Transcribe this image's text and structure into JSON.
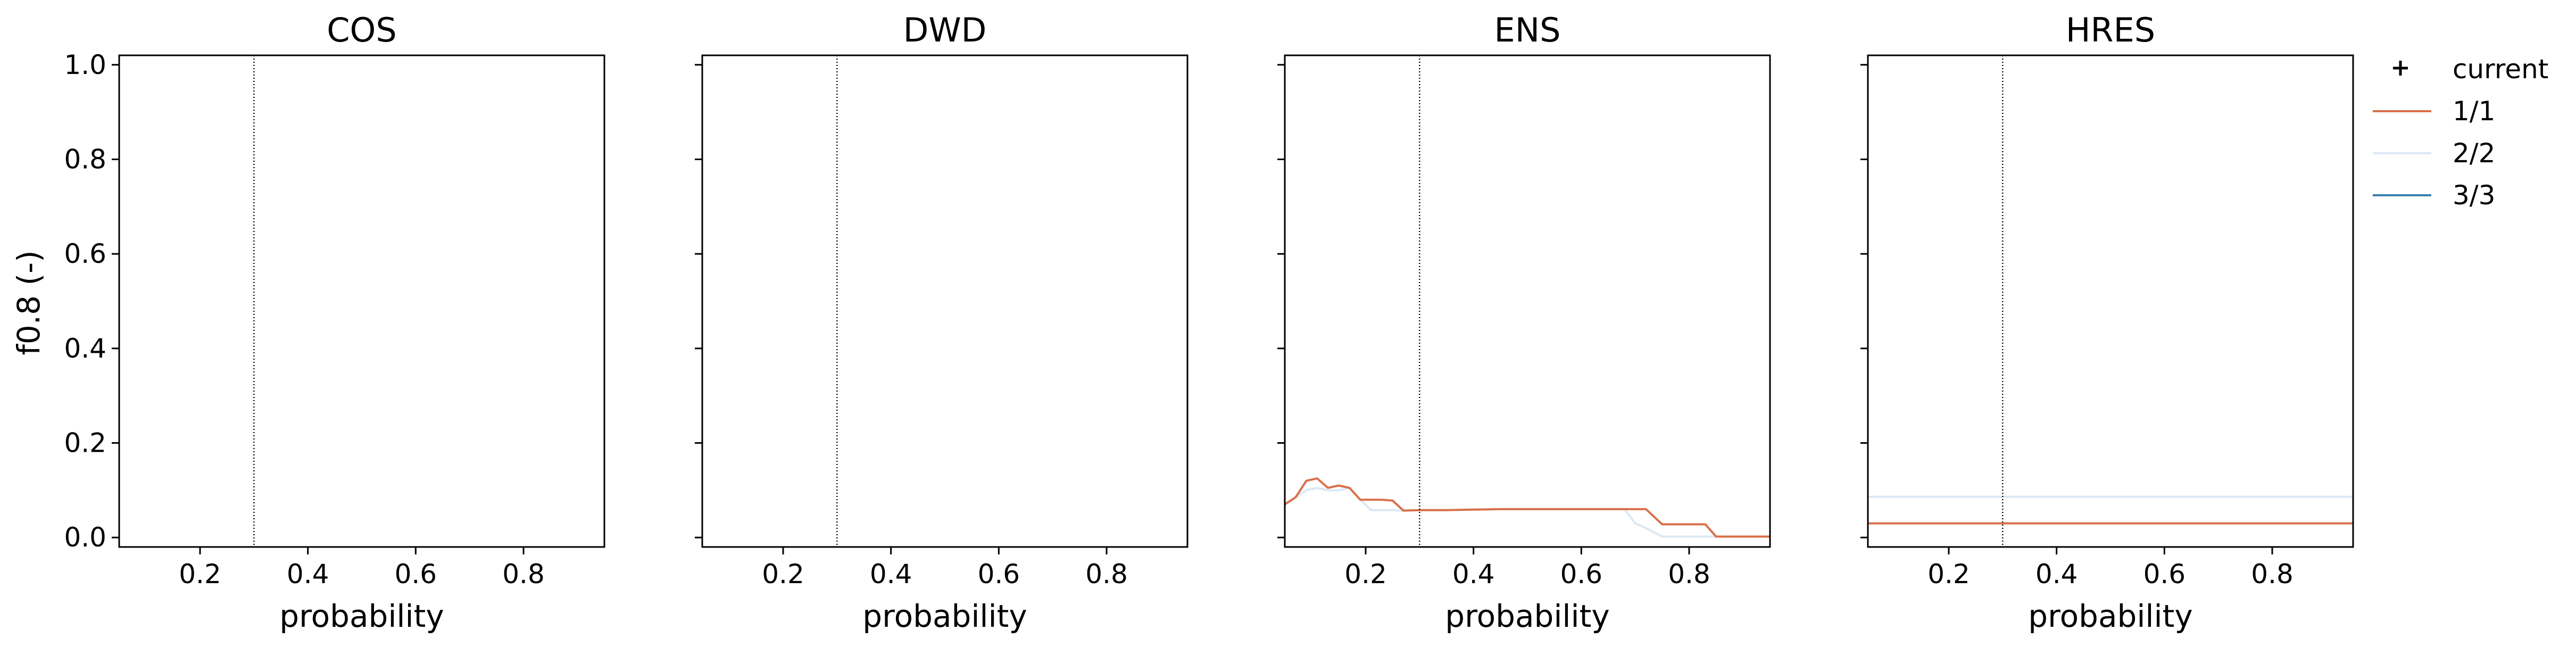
{
  "figure": {
    "ylabel": "f0.8 (-)"
  },
  "legend": {
    "placement": "outside-right",
    "entries": [
      {
        "label": "current",
        "marker": "+",
        "color": "#000000"
      },
      {
        "label": "1/1",
        "color": "#d9704a"
      },
      {
        "label": "2/2",
        "color": "#dbe8f5"
      },
      {
        "label": "3/3",
        "color": "#3a80b0"
      }
    ]
  },
  "chart_data": [
    {
      "type": "line",
      "title": "COS",
      "xlabel": "probability",
      "xlim": [
        0.05,
        0.95
      ],
      "ylim": [
        -0.02,
        1.02
      ],
      "xticks": [
        "0.2",
        "0.4",
        "0.6",
        "0.8"
      ],
      "yticks": [
        "0.0",
        "0.2",
        "0.4",
        "0.6",
        "0.8",
        "1.0"
      ],
      "show_ytick_labels": true,
      "vline_x": 0.3,
      "series": []
    },
    {
      "type": "line",
      "title": "DWD",
      "xlabel": "probability",
      "xlim": [
        0.05,
        0.95
      ],
      "ylim": [
        -0.02,
        1.02
      ],
      "xticks": [
        "0.2",
        "0.4",
        "0.6",
        "0.8"
      ],
      "yticks": [
        "0.0",
        "0.2",
        "0.4",
        "0.6",
        "0.8",
        "1.0"
      ],
      "show_ytick_labels": false,
      "vline_x": 0.3,
      "series": []
    },
    {
      "type": "line",
      "title": "ENS",
      "xlabel": "probability",
      "xlim": [
        0.05,
        0.95
      ],
      "ylim": [
        -0.02,
        1.02
      ],
      "xticks": [
        "0.2",
        "0.4",
        "0.6",
        "0.8"
      ],
      "yticks": [
        "0.0",
        "0.2",
        "0.4",
        "0.6",
        "0.8",
        "1.0"
      ],
      "show_ytick_labels": false,
      "vline_x": 0.3,
      "series": [
        {
          "legend": "2/2",
          "color": "#dbe8f5",
          "x": [
            0.05,
            0.07,
            0.09,
            0.11,
            0.13,
            0.15,
            0.17,
            0.19,
            0.21,
            0.23,
            0.25,
            0.27,
            0.3,
            0.35,
            0.4,
            0.45,
            0.5,
            0.55,
            0.6,
            0.65,
            0.68,
            0.7,
            0.72,
            0.75,
            0.8,
            0.85,
            0.9,
            0.95
          ],
          "y": [
            0.07,
            0.085,
            0.1,
            0.105,
            0.1,
            0.1,
            0.105,
            0.08,
            0.058,
            0.058,
            0.058,
            0.057,
            0.058,
            0.058,
            0.059,
            0.06,
            0.06,
            0.06,
            0.06,
            0.06,
            0.06,
            0.03,
            0.02,
            0.002,
            0.002,
            0.002,
            0.002,
            0.002
          ]
        },
        {
          "legend": "1/1",
          "color": "#d9704a",
          "x": [
            0.05,
            0.07,
            0.09,
            0.11,
            0.13,
            0.15,
            0.17,
            0.19,
            0.21,
            0.23,
            0.25,
            0.27,
            0.3,
            0.35,
            0.4,
            0.45,
            0.5,
            0.55,
            0.6,
            0.65,
            0.7,
            0.72,
            0.75,
            0.8,
            0.83,
            0.85,
            0.9,
            0.95
          ],
          "y": [
            0.07,
            0.085,
            0.12,
            0.125,
            0.105,
            0.11,
            0.105,
            0.08,
            0.08,
            0.08,
            0.078,
            0.057,
            0.058,
            0.058,
            0.059,
            0.06,
            0.06,
            0.06,
            0.06,
            0.06,
            0.06,
            0.06,
            0.028,
            0.028,
            0.028,
            0.002,
            0.002,
            0.002
          ]
        }
      ]
    },
    {
      "type": "line",
      "title": "HRES",
      "xlabel": "probability",
      "xlim": [
        0.05,
        0.95
      ],
      "ylim": [
        -0.02,
        1.02
      ],
      "xticks": [
        "0.2",
        "0.4",
        "0.6",
        "0.8"
      ],
      "yticks": [
        "0.0",
        "0.2",
        "0.4",
        "0.6",
        "0.8",
        "1.0"
      ],
      "show_ytick_labels": false,
      "vline_x": 0.3,
      "series": [
        {
          "legend": "2/2",
          "color": "#dbe8f5",
          "x": [
            0.05,
            0.95
          ],
          "y": [
            0.086,
            0.086
          ]
        },
        {
          "legend": "1/1",
          "color": "#d9704a",
          "x": [
            0.05,
            0.95
          ],
          "y": [
            0.03,
            0.03
          ]
        }
      ]
    }
  ]
}
